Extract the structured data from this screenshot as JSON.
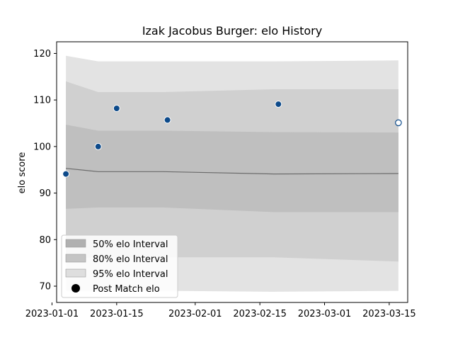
{
  "chart_data": {
    "type": "line",
    "title": "Izak Jacobus Burger: elo History",
    "xlabel": "",
    "ylabel": "elo score",
    "xlim": [
      "2023-01-02",
      "2023-03-19"
    ],
    "ylim": [
      66.5,
      122.5
    ],
    "yticks": [
      70,
      80,
      90,
      100,
      110,
      120
    ],
    "xticks": [
      {
        "date": "2023-01-01",
        "label": "2023-01-01"
      },
      {
        "date": "2023-01-15",
        "label": "2023-01-15"
      },
      {
        "date": "2023-02-01",
        "label": "2023-02-01"
      },
      {
        "date": "2023-02-15",
        "label": "2023-02-15"
      },
      {
        "date": "2023-03-01",
        "label": "2023-03-01"
      },
      {
        "date": "2023-03-15",
        "label": "2023-03-15"
      }
    ],
    "band_dates": [
      "2023-01-04",
      "2023-01-11",
      "2023-01-25",
      "2023-02-18",
      "2023-03-17"
    ],
    "mean": [
      95.3,
      94.6,
      94.6,
      94.1,
      94.2
    ],
    "bands": [
      {
        "name": "95% elo Interval",
        "color": "#e3e3e3",
        "lower": [
          69.0,
          69.0,
          69.0,
          68.8,
          69.0
        ],
        "upper": [
          119.5,
          118.3,
          118.3,
          118.3,
          118.5
        ]
      },
      {
        "name": "80% elo Interval",
        "color": "#d0d0d0",
        "lower": [
          76.0,
          76.2,
          76.2,
          76.2,
          75.3
        ],
        "upper": [
          114.0,
          111.7,
          111.7,
          112.3,
          112.3
        ]
      },
      {
        "name": "50% elo Interval",
        "color": "#bfbfbf",
        "lower": [
          86.6,
          86.9,
          86.9,
          85.9,
          85.9
        ],
        "upper": [
          104.7,
          103.4,
          103.4,
          103.1,
          103.0
        ]
      }
    ],
    "points": {
      "name": "Post Match elo",
      "x": [
        "2023-01-04",
        "2023-01-11",
        "2023-01-15",
        "2023-01-26",
        "2023-02-19",
        "2023-03-17"
      ],
      "y": [
        94.1,
        100.0,
        108.2,
        105.7,
        109.1,
        105.1
      ]
    },
    "legend": {
      "position": "lower-left",
      "entries": [
        {
          "label": "50% elo Interval",
          "swatch_color": "#b0b0b0"
        },
        {
          "label": "80% elo Interval",
          "swatch_color": "#c4c4c4"
        },
        {
          "label": "95% elo Interval",
          "swatch_color": "#dedede"
        },
        {
          "label": "Post Match elo",
          "swatch_color": "#000000"
        }
      ]
    },
    "colors": {
      "point_fill": "#0d4a8a",
      "last_point_fill": "#ffffff",
      "point_edge": "#ffffff",
      "last_point_edge": "#0d4a8a",
      "mean_line": "#6b6b6b"
    },
    "grid": false
  }
}
